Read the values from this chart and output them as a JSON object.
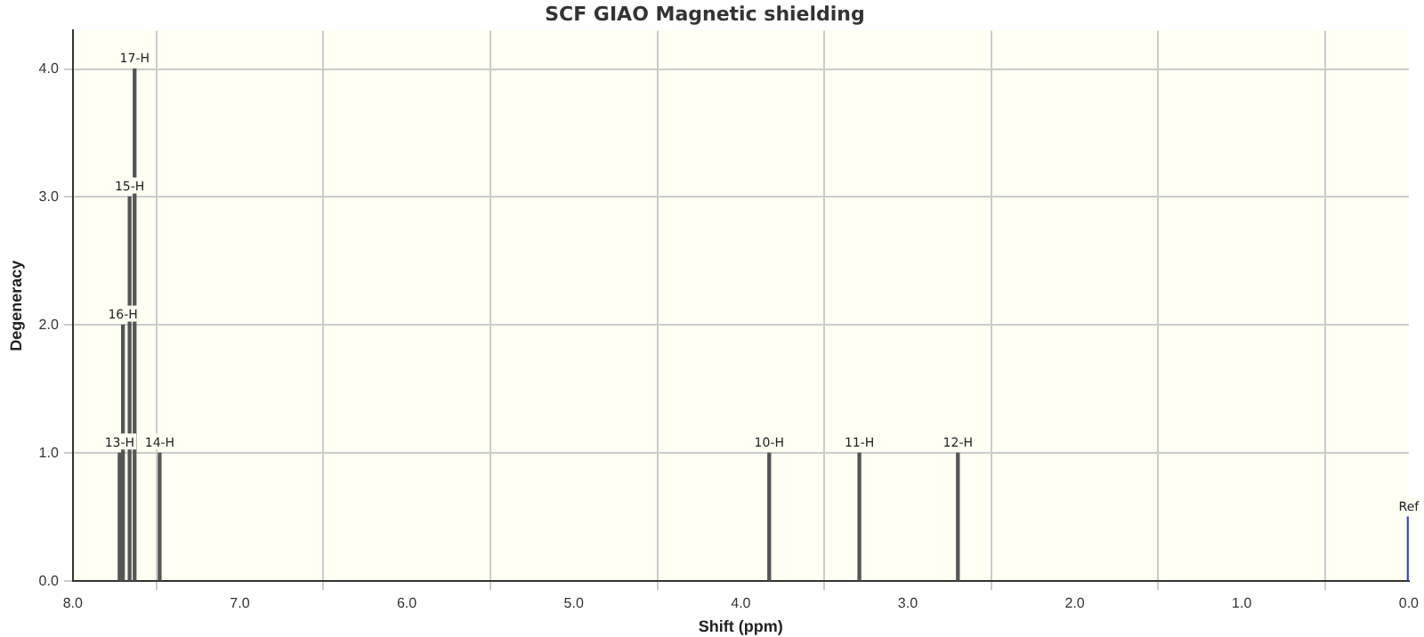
{
  "chart_data": {
    "type": "bar",
    "title": "SCF GIAO Magnetic shielding",
    "xlabel": "Shift (ppm)",
    "ylabel": "Degeneracy",
    "x": [
      7.72,
      7.7,
      7.66,
      7.63,
      7.48,
      3.83,
      3.29,
      2.7,
      0.0
    ],
    "values": [
      1,
      2,
      3,
      4,
      1,
      1,
      1,
      1,
      0.5
    ],
    "annotations": [
      {
        "text": "13-H",
        "x": 7.72,
        "y": 1
      },
      {
        "text": "16-H",
        "x": 7.7,
        "y": 2
      },
      {
        "text": "15-H",
        "x": 7.66,
        "y": 3
      },
      {
        "text": "17-H",
        "x": 7.63,
        "y": 4
      },
      {
        "text": "14-H",
        "x": 7.48,
        "y": 1
      },
      {
        "text": "10-H",
        "x": 3.83,
        "y": 1
      },
      {
        "text": "11-H",
        "x": 3.29,
        "y": 1
      },
      {
        "text": "12-H",
        "x": 2.7,
        "y": 1
      },
      {
        "text": "Ref",
        "x": 0.0,
        "y": 0.5
      }
    ],
    "colors": [
      "#555555",
      "#555555",
      "#555555",
      "#555555",
      "#555555",
      "#555555",
      "#555555",
      "#555555",
      "#3344cc"
    ],
    "xlim": [
      8,
      0
    ],
    "xticks": [
      {
        "value": 8,
        "label": "8.0"
      },
      {
        "value": 7,
        "label": "7.0"
      },
      {
        "value": 6,
        "label": "6.0"
      },
      {
        "value": 5,
        "label": "5.0"
      },
      {
        "value": 4,
        "label": "4.0"
      },
      {
        "value": 3,
        "label": "3.0"
      },
      {
        "value": 2,
        "label": "2.0"
      },
      {
        "value": 1,
        "label": "1.0"
      },
      {
        "value": 0,
        "label": "0.0"
      }
    ],
    "ylim": [
      0,
      4.3
    ],
    "yticks": [
      {
        "value": 0,
        "label": "0.0"
      },
      {
        "value": 1,
        "label": "1.0"
      },
      {
        "value": 2,
        "label": "2.0"
      },
      {
        "value": 3,
        "label": "3.0"
      },
      {
        "value": 4,
        "label": "4.0"
      }
    ],
    "grid": true
  }
}
